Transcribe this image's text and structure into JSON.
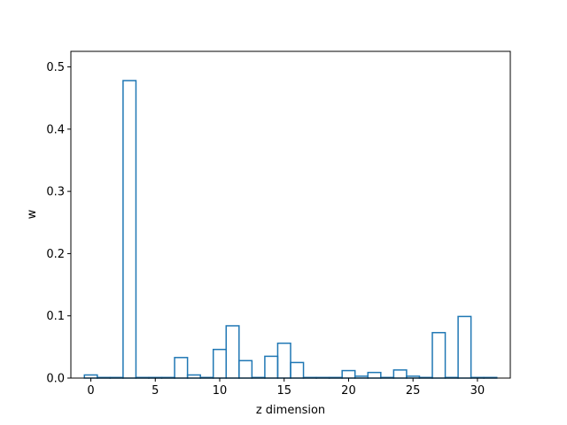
{
  "chart_data": {
    "type": "bar",
    "style": "step-histogram",
    "xlabel": "z dimension",
    "ylabel": "w",
    "xlim": [
      -1.55,
      32.55
    ],
    "ylim": [
      0,
      0.525
    ],
    "x": [
      0,
      1,
      2,
      3,
      4,
      5,
      6,
      7,
      8,
      9,
      10,
      11,
      12,
      13,
      14,
      15,
      16,
      17,
      18,
      19,
      20,
      21,
      22,
      23,
      24,
      25,
      26,
      27,
      28,
      29,
      30,
      31
    ],
    "values": [
      0.005,
      0.001,
      0.001,
      0.478,
      0.001,
      0.001,
      0.001,
      0.033,
      0.005,
      0.001,
      0.046,
      0.084,
      0.028,
      0.001,
      0.035,
      0.056,
      0.025,
      0.001,
      0.001,
      0.001,
      0.012,
      0.003,
      0.009,
      0.001,
      0.013,
      0.003,
      0.001,
      0.073,
      0.001,
      0.099,
      0.001,
      0.001
    ],
    "xticks": [
      0,
      5,
      10,
      15,
      20,
      25,
      30
    ],
    "xtick_labels": [
      "0",
      "5",
      "10",
      "15",
      "20",
      "25",
      "30"
    ],
    "yticks": [
      0.0,
      0.1,
      0.2,
      0.3,
      0.4,
      0.5
    ],
    "ytick_labels": [
      "0.0",
      "0.1",
      "0.2",
      "0.3",
      "0.4",
      "0.5"
    ],
    "grid": false,
    "legend": "none",
    "line_color": "#1f77b4"
  }
}
